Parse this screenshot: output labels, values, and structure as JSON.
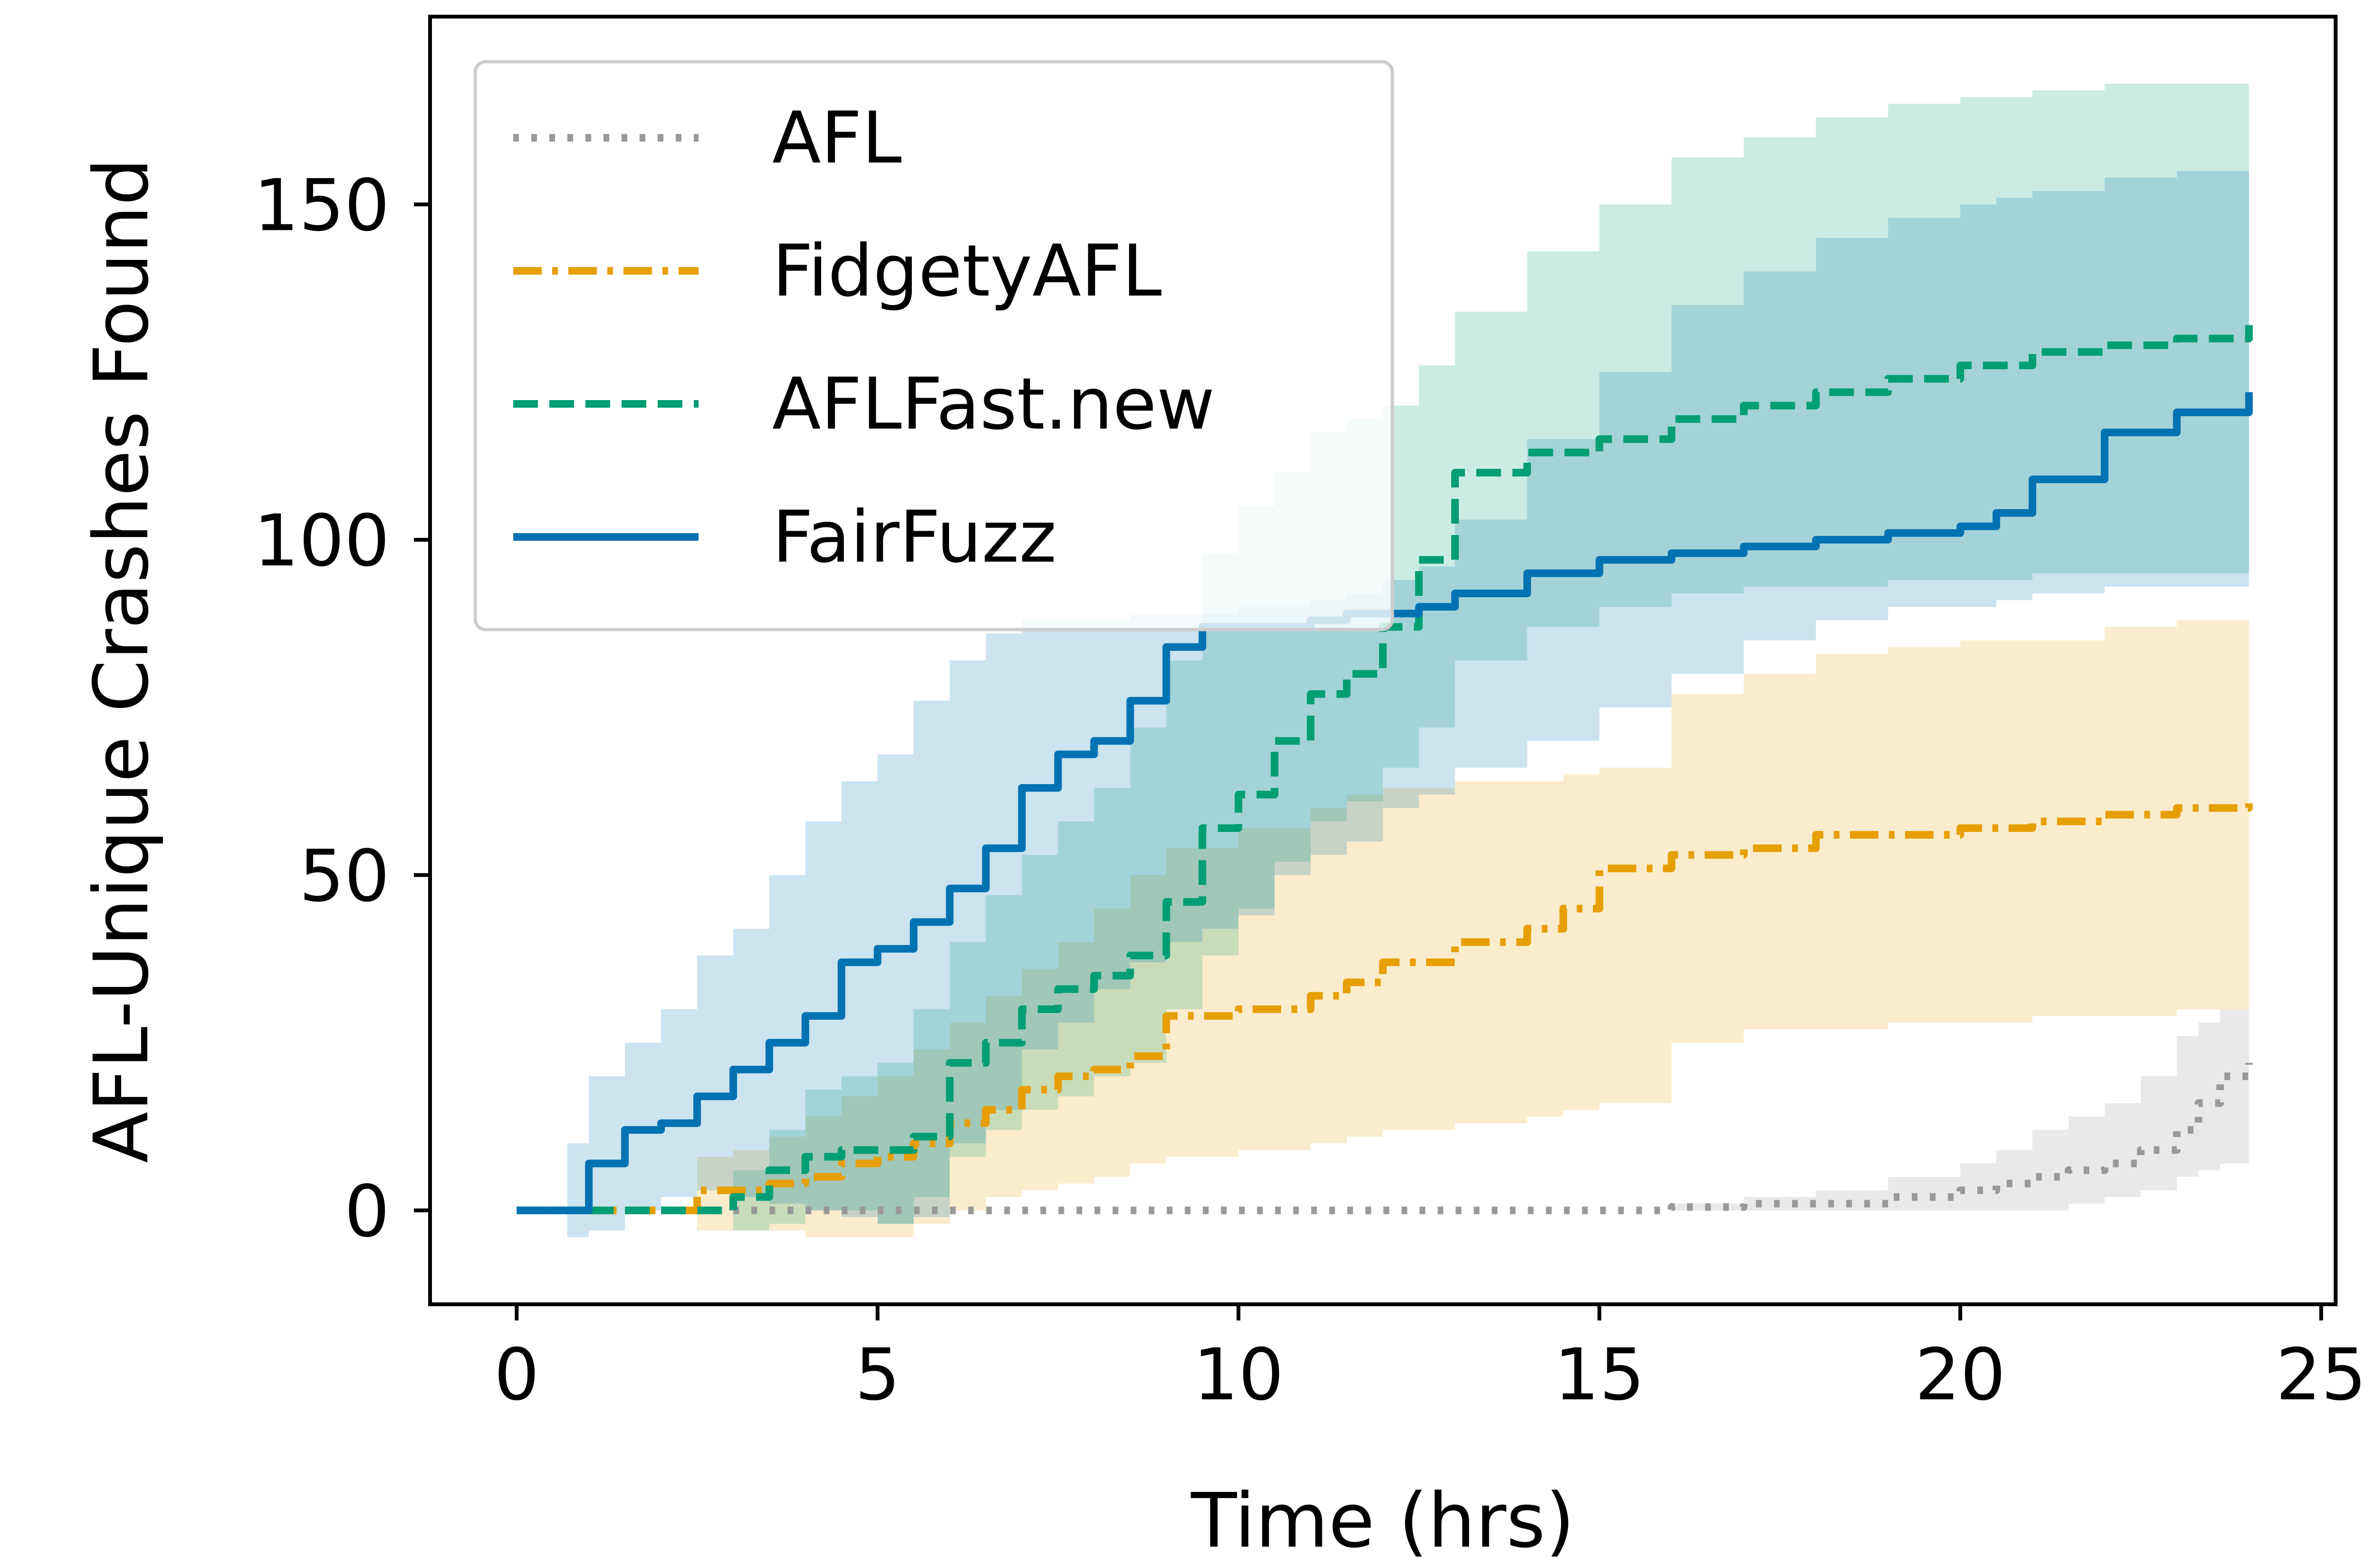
{
  "chart_data": {
    "type": "line",
    "title": "",
    "xlabel": "Time (hrs)",
    "ylabel": "AFL-Unique Crashes Found",
    "xlim": [
      -1.2,
      25.2
    ],
    "ylim": [
      -14,
      178
    ],
    "xticks": [
      0,
      5,
      10,
      15,
      20,
      25
    ],
    "yticks": [
      0,
      50,
      100,
      150
    ],
    "legend_position": "top-left",
    "grid": false,
    "series": [
      {
        "name": "AFL",
        "color": "#999999",
        "linestyle": "dotted",
        "x": [
          0,
          2,
          4,
          6,
          8,
          10,
          12,
          14,
          15,
          16,
          17,
          18,
          19,
          20,
          20.5,
          21,
          21.5,
          22,
          22.5,
          23,
          23.3,
          23.6,
          24
        ],
        "y": [
          0,
          0,
          0,
          0,
          0,
          0,
          0,
          0,
          0,
          0.5,
          1,
          1,
          2,
          3,
          4,
          5,
          6,
          7,
          9,
          12,
          16,
          20,
          22
        ],
        "band_low": [
          0,
          0,
          0,
          0,
          0,
          0,
          0,
          0,
          0,
          0,
          0,
          0,
          0,
          0,
          0,
          0,
          1,
          2,
          3,
          5,
          6,
          7,
          8
        ],
        "band_high": [
          0,
          0,
          0,
          0,
          0,
          0,
          0,
          0,
          0,
          1,
          2,
          3,
          5,
          7,
          9,
          12,
          14,
          16,
          20,
          26,
          28,
          30,
          38
        ]
      },
      {
        "name": "FidgetyAFL",
        "color": "#e69f00",
        "linestyle": "dashdot",
        "x": [
          0,
          2,
          2.5,
          3,
          3.5,
          4,
          4.5,
          5,
          5.5,
          6,
          6.5,
          7,
          7.5,
          8,
          8.5,
          9,
          10,
          11,
          11.5,
          12,
          13,
          14,
          14.5,
          15,
          16,
          17,
          18,
          19,
          20,
          21,
          22,
          23,
          24
        ],
        "y": [
          0,
          0,
          3,
          3,
          4,
          5,
          7,
          8,
          10,
          13,
          15,
          18,
          20,
          21,
          23,
          29,
          30,
          32,
          34,
          37,
          40,
          42,
          45,
          51,
          53,
          54,
          56,
          56,
          57,
          58,
          59,
          60,
          61
        ],
        "band_low": [
          0,
          0,
          -3,
          -3,
          -3,
          -4,
          -4,
          -4,
          -2,
          0,
          2,
          3,
          4,
          5,
          7,
          8,
          9,
          10,
          11,
          12,
          13,
          14,
          15,
          16,
          25,
          27,
          27,
          28,
          28,
          29,
          29,
          30,
          30
        ],
        "band_high": [
          0,
          0,
          8,
          9,
          11,
          14,
          17,
          20,
          24,
          28,
          32,
          36,
          40,
          45,
          50,
          54,
          57,
          60,
          62,
          63,
          64,
          64,
          65,
          66,
          77,
          80,
          83,
          84,
          85,
          85,
          87,
          88,
          89
        ]
      },
      {
        "name": "AFLFast.new",
        "color": "#009e73",
        "linestyle": "dashed",
        "x": [
          0,
          2.5,
          3,
          3.5,
          4,
          4.5,
          5,
          5.5,
          6,
          6.5,
          7,
          7.5,
          8,
          8.5,
          9,
          9.5,
          10,
          10.5,
          11,
          11.5,
          12,
          12.5,
          13,
          14,
          15,
          16,
          17,
          18,
          19,
          20,
          21,
          22,
          23,
          24
        ],
        "y": [
          0,
          0,
          2,
          6,
          8,
          9,
          9,
          11,
          22,
          25,
          30,
          33,
          35,
          38,
          46,
          57,
          62,
          70,
          77,
          80,
          87,
          97,
          110,
          113,
          115,
          118,
          120,
          122,
          124,
          126,
          128,
          129,
          130,
          132
        ],
        "band_low": [
          0,
          0,
          -3,
          -2,
          0,
          0,
          -2,
          2,
          8,
          12,
          15,
          17,
          20,
          22,
          30,
          38,
          45,
          52,
          58,
          61,
          66,
          72,
          82,
          87,
          90,
          92,
          93,
          93,
          94,
          94,
          95,
          95,
          95,
          95
        ],
        "band_high": [
          0,
          0,
          6,
          12,
          18,
          20,
          22,
          30,
          40,
          47,
          53,
          58,
          63,
          72,
          82,
          98,
          105,
          110,
          116,
          118,
          120,
          126,
          134,
          143,
          150,
          157,
          160,
          163,
          165,
          166,
          167,
          168,
          168,
          169
        ]
      },
      {
        "name": "FairFuzz",
        "color": "#0072b2",
        "linestyle": "solid",
        "x": [
          0,
          0.7,
          1,
          1.5,
          2,
          2.5,
          3,
          3.5,
          4,
          4.5,
          5,
          5.5,
          6,
          6.5,
          7,
          7.5,
          8,
          8.5,
          9,
          9.5,
          10,
          10.5,
          11,
          11.5,
          12,
          12.5,
          13,
          14,
          15,
          16,
          17,
          18,
          19,
          20,
          20.5,
          21,
          22,
          23,
          24
        ],
        "y": [
          0,
          0,
          7,
          12,
          13,
          17,
          21,
          25,
          29,
          37,
          39,
          43,
          48,
          54,
          63,
          68,
          70,
          76,
          84,
          87,
          87,
          87,
          88,
          89,
          89,
          90,
          92,
          95,
          97,
          98,
          99,
          100,
          101,
          102,
          104,
          109,
          116,
          119,
          122
        ],
        "band_low": [
          0,
          -4,
          -3,
          0,
          2,
          3,
          2,
          1,
          0,
          -1,
          -2,
          -1,
          10,
          15,
          24,
          28,
          33,
          37,
          40,
          42,
          44,
          50,
          53,
          55,
          60,
          62,
          66,
          70,
          75,
          80,
          85,
          88,
          90,
          90,
          91,
          92,
          93,
          93,
          94
        ],
        "band_high": [
          0,
          10,
          20,
          25,
          30,
          38,
          42,
          50,
          58,
          64,
          68,
          76,
          82,
          86,
          88,
          88,
          88,
          89,
          89,
          89,
          90,
          90,
          91,
          92,
          94,
          96,
          103,
          115,
          125,
          135,
          140,
          145,
          148,
          150,
          151,
          152,
          154,
          155,
          156
        ]
      }
    ]
  }
}
